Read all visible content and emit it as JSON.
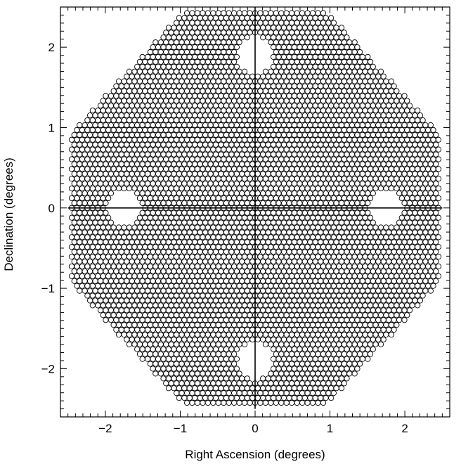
{
  "chart_data": {
    "type": "scatter",
    "marker": "open-circle",
    "xlabel": "Right Ascension (degrees)",
    "ylabel": "Declination (degrees)",
    "xlim": [
      -2.6,
      2.6
    ],
    "ylim": [
      -2.6,
      2.5
    ],
    "xticks": [
      -2,
      -1,
      0,
      1,
      2
    ],
    "xtick_labels": [
      "−2",
      "−1",
      "0",
      "1",
      "2"
    ],
    "yticks": [
      -2,
      -1,
      0,
      1,
      2
    ],
    "ytick_labels": [
      "−2",
      "−1",
      "0",
      "1",
      "2"
    ],
    "grid": false,
    "layout": {
      "pattern": "hexagonal close-packed grid of circular fields",
      "boundary": "octagonal, half-extent about 2.45 degrees",
      "circle_spacing_deg": 0.07,
      "holes": [
        {
          "x": 0.0,
          "y": 1.9
        },
        {
          "x": 0.0,
          "y": -1.9
        },
        {
          "x": -1.75,
          "y": 0.0
        },
        {
          "x": 1.75,
          "y": 0.0
        }
      ]
    },
    "crosshair_lines": [
      {
        "orientation": "vertical",
        "at": 0.0,
        "from": -2.5,
        "to": 2.5
      },
      {
        "orientation": "horizontal",
        "at": 0.0,
        "from": -2.5,
        "to": 2.5
      }
    ]
  }
}
